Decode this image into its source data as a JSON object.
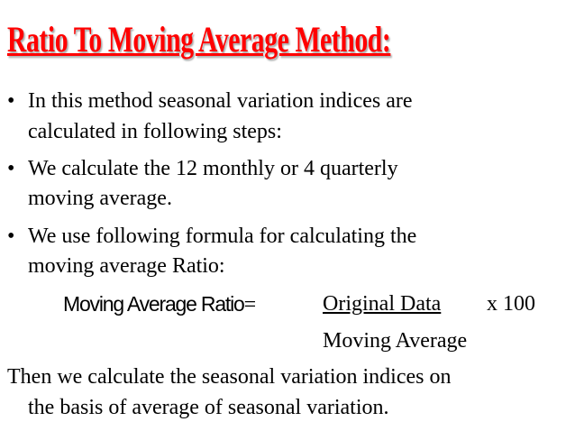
{
  "title": "Ratio To Moving Average Method:",
  "bullets": [
    {
      "l1": "In this method seasonal variation indices are",
      "l2": "calculated in following steps:"
    },
    {
      "l1": " We calculate the 12 monthly or 4 quarterly",
      "l2": "moving average."
    },
    {
      "l1": "We use following formula for calculating the",
      "l2": "moving average Ratio:"
    }
  ],
  "bullet_symbol": "•",
  "formula": {
    "label": "Moving Average Ratio",
    "equals": "=",
    "numerator": "Original Data",
    "multiplier": "x 100",
    "denominator": "Moving Average"
  },
  "conclusion": {
    "l1": "Then we calculate the seasonal variation indices on",
    "l2": "the basis of average of seasonal variation."
  }
}
